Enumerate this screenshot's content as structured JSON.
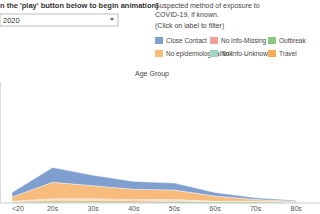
{
  "chart_data": {
    "type": "area",
    "stacked": true,
    "title": "n the 'play' button below to begin animation)",
    "annotations": [
      "2020"
    ],
    "legend_title": [
      "Suspected method of exposure to",
      "COVID-19, if known.",
      "(Click on label to filter)"
    ],
    "x_label": "Age Group",
    "categories": [
      "<20",
      "20s",
      "30s",
      "40s",
      "50s",
      "60s",
      "70s",
      "80s"
    ],
    "ylim": [
      0,
      700
    ],
    "yticks": [],
    "tick_labels": "x",
    "grid": false,
    "legend": "top-right",
    "series": [
      {
        "name": "Outbreak",
        "color": "#8cc97e",
        "values": [
          5,
          5,
          5,
          5,
          10,
          10,
          10,
          5
        ]
      },
      {
        "name": "Travel",
        "color": "#f2ad5a",
        "values": [
          5,
          10,
          10,
          10,
          5,
          0,
          0,
          0
        ]
      },
      {
        "name": "No Info-Unknown",
        "color": "#9fd3c6",
        "values": [
          0,
          5,
          5,
          0,
          0,
          0,
          0,
          0
        ]
      },
      {
        "name": "No Info-Missing",
        "color": "#f2a09a",
        "values": [
          0,
          5,
          5,
          5,
          5,
          0,
          0,
          0
        ]
      },
      {
        "name": "No epidemiological link",
        "color": "#f7bb7c",
        "values": [
          25,
          95,
          75,
          60,
          55,
          30,
          10,
          5
        ]
      },
      {
        "name": "Close Contact",
        "color": "#7e9fcf",
        "values": [
          25,
          85,
          60,
          45,
          40,
          20,
          10,
          5
        ]
      }
    ]
  }
}
